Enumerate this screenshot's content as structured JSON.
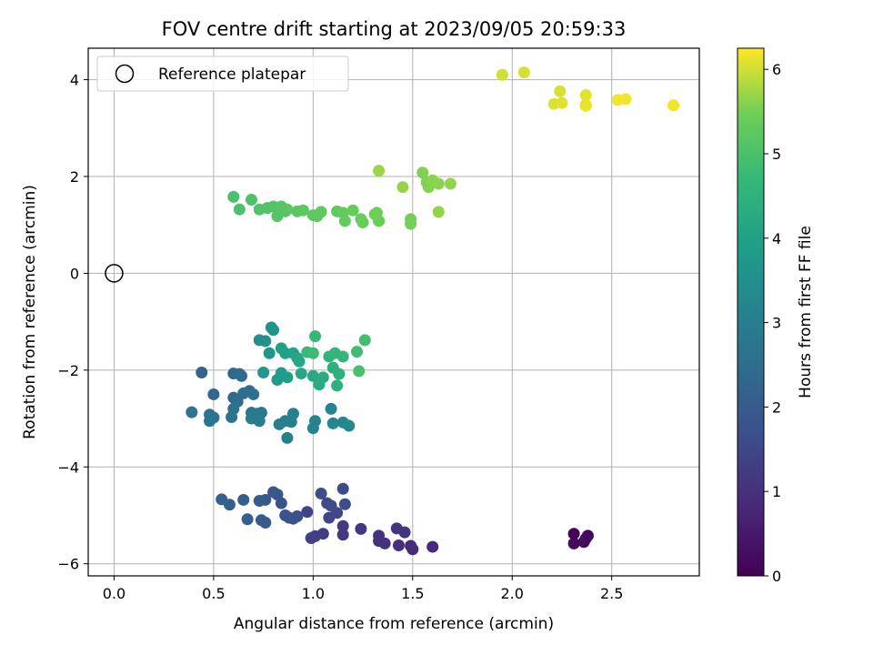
{
  "chart_data": {
    "type": "scatter",
    "title": "FOV centre drift starting at 2023/09/05 20:59:33",
    "xlabel": "Angular distance from reference (arcmin)",
    "ylabel": "Rotation from reference (arcmin)",
    "xlim": [
      -0.13,
      2.94
    ],
    "ylim": [
      -6.25,
      4.65
    ],
    "xticks": [
      0.0,
      0.5,
      1.0,
      1.5,
      2.0,
      2.5
    ],
    "xtick_labels": [
      "0.0",
      "0.5",
      "1.0",
      "1.5",
      "2.0",
      "2.5"
    ],
    "yticks": [
      -6,
      -4,
      -2,
      0,
      2,
      4
    ],
    "ytick_labels": [
      "−6",
      "−4",
      "−2",
      "0",
      "2",
      "4"
    ],
    "grid": true,
    "legend": {
      "position": "top-left",
      "entries": [
        "Reference platepar"
      ]
    },
    "reference_point": {
      "x": 0.0,
      "y": 0.0,
      "label": "Reference platepar"
    },
    "colorbar": {
      "label": "Hours from first FF file",
      "range": [
        0,
        6.25
      ],
      "ticks": [
        0,
        1,
        2,
        3,
        4,
        5,
        6
      ],
      "tick_labels": [
        "0",
        "1",
        "2",
        "3",
        "4",
        "5",
        "6"
      ],
      "colormap": "viridis"
    },
    "series": [
      {
        "points": [
          [
            2.31,
            -5.38,
            0.05
          ],
          [
            2.38,
            -5.42,
            0.1
          ],
          [
            2.31,
            -5.58,
            0.15
          ],
          [
            2.36,
            -5.55,
            0.2
          ],
          [
            2.37,
            -5.48,
            0.25
          ],
          [
            1.5,
            -5.7,
            0.8
          ],
          [
            1.6,
            -5.65,
            0.85
          ],
          [
            1.49,
            -5.63,
            0.9
          ],
          [
            1.43,
            -5.62,
            0.95
          ],
          [
            1.36,
            -5.58,
            1.0
          ],
          [
            1.33,
            -5.53,
            1.02
          ],
          [
            1.33,
            -5.42,
            1.05
          ],
          [
            1.42,
            -5.27,
            1.07
          ],
          [
            1.46,
            -5.35,
            1.1
          ],
          [
            1.24,
            -5.28,
            1.15
          ],
          [
            1.15,
            -5.4,
            1.17
          ],
          [
            1.15,
            -5.22,
            1.2
          ],
          [
            1.05,
            -5.38,
            1.25
          ],
          [
            1.01,
            -5.43,
            1.3
          ],
          [
            0.99,
            -5.47,
            1.35
          ],
          [
            0.97,
            -4.93,
            1.4
          ],
          [
            1.08,
            -5.05,
            1.45
          ],
          [
            1.12,
            -4.95,
            1.5
          ],
          [
            1.07,
            -4.75,
            1.53
          ],
          [
            1.09,
            -4.8,
            1.56
          ],
          [
            1.15,
            -4.45,
            1.6
          ],
          [
            1.16,
            -4.77,
            1.63
          ],
          [
            1.04,
            -4.55,
            1.66
          ],
          [
            0.9,
            -5.07,
            1.7
          ],
          [
            0.92,
            -5.02,
            1.73
          ],
          [
            0.88,
            -5.05,
            1.76
          ],
          [
            0.86,
            -5.0,
            1.8
          ],
          [
            0.84,
            -4.75,
            1.83
          ],
          [
            0.82,
            -4.57,
            1.86
          ],
          [
            0.8,
            -4.52,
            1.9
          ],
          [
            0.76,
            -4.68,
            1.93
          ],
          [
            0.73,
            -4.7,
            1.96
          ],
          [
            0.76,
            -5.15,
            2.0
          ],
          [
            0.74,
            -5.1,
            2.03
          ],
          [
            0.67,
            -5.08,
            2.06
          ],
          [
            0.65,
            -4.68,
            2.1
          ],
          [
            0.58,
            -4.78,
            2.13
          ],
          [
            0.54,
            -4.67,
            2.16
          ],
          [
            0.44,
            -2.05,
            2.25
          ],
          [
            0.5,
            -2.5,
            2.3
          ],
          [
            0.6,
            -2.07,
            2.33
          ],
          [
            0.63,
            -2.08,
            2.36
          ],
          [
            0.64,
            -2.12,
            2.4
          ],
          [
            0.6,
            -2.57,
            2.43
          ],
          [
            0.62,
            -2.65,
            2.46
          ],
          [
            0.65,
            -2.48,
            2.5
          ],
          [
            0.68,
            -2.43,
            2.53
          ],
          [
            0.7,
            -2.5,
            2.56
          ],
          [
            0.6,
            -2.8,
            2.6
          ],
          [
            0.59,
            -2.97,
            2.63
          ],
          [
            0.48,
            -2.92,
            2.66
          ],
          [
            0.5,
            -2.98,
            2.7
          ],
          [
            0.48,
            -3.05,
            2.73
          ],
          [
            0.39,
            -2.87,
            2.76
          ],
          [
            0.69,
            -2.88,
            2.8
          ],
          [
            0.72,
            -2.9,
            2.83
          ],
          [
            0.74,
            -2.88,
            2.86
          ],
          [
            0.69,
            -3.0,
            2.9
          ],
          [
            0.73,
            -3.05,
            2.93
          ],
          [
            0.83,
            -3.12,
            2.96
          ],
          [
            0.86,
            -3.05,
            3.0
          ],
          [
            0.89,
            -3.07,
            3.03
          ],
          [
            0.9,
            -2.9,
            3.06
          ],
          [
            0.87,
            -3.4,
            3.1
          ],
          [
            1.0,
            -3.2,
            3.13
          ],
          [
            1.01,
            -3.05,
            3.16
          ],
          [
            1.09,
            -2.8,
            3.2
          ],
          [
            1.1,
            -3.1,
            3.23
          ],
          [
            1.15,
            -3.08,
            3.26
          ],
          [
            1.18,
            -3.15,
            3.3
          ],
          [
            0.73,
            -1.38,
            3.5
          ],
          [
            0.76,
            -1.4,
            3.55
          ],
          [
            0.79,
            -1.12,
            3.6
          ],
          [
            0.8,
            -1.17,
            3.65
          ],
          [
            0.78,
            -1.65,
            3.7
          ],
          [
            0.75,
            -2.05,
            3.75
          ],
          [
            0.82,
            -2.2,
            3.8
          ],
          [
            0.84,
            -2.06,
            3.85
          ],
          [
            0.87,
            -2.15,
            3.9
          ],
          [
            0.84,
            -1.55,
            3.95
          ],
          [
            0.86,
            -1.65,
            4.0
          ],
          [
            0.9,
            -1.65,
            4.05
          ],
          [
            0.92,
            -1.75,
            4.1
          ],
          [
            0.93,
            -1.82,
            4.15
          ],
          [
            0.94,
            -2.07,
            4.2
          ],
          [
            1.0,
            -2.12,
            4.25
          ],
          [
            1.03,
            -2.3,
            4.3
          ],
          [
            1.05,
            -2.15,
            4.35
          ],
          [
            1.1,
            -1.95,
            4.4
          ],
          [
            1.13,
            -2.08,
            4.45
          ],
          [
            1.12,
            -2.32,
            4.5
          ],
          [
            1.08,
            -1.72,
            4.55
          ],
          [
            1.11,
            -1.65,
            4.6
          ],
          [
            1.15,
            -1.72,
            4.65
          ],
          [
            1.01,
            -1.3,
            4.7
          ],
          [
            0.97,
            -1.63,
            4.75
          ],
          [
            1.0,
            -1.65,
            4.8
          ],
          [
            1.22,
            -1.62,
            4.85
          ],
          [
            1.26,
            -1.38,
            4.9
          ],
          [
            1.23,
            -2.02,
            4.95
          ],
          [
            0.6,
            1.58,
            5.0
          ],
          [
            0.63,
            1.32,
            5.02
          ],
          [
            0.69,
            1.52,
            5.04
          ],
          [
            0.73,
            1.32,
            5.06
          ],
          [
            0.77,
            1.35,
            5.08
          ],
          [
            0.8,
            1.38,
            5.1
          ],
          [
            0.82,
            1.18,
            5.12
          ],
          [
            0.86,
            1.28,
            5.14
          ],
          [
            0.84,
            1.38,
            5.16
          ],
          [
            0.87,
            1.32,
            5.18
          ],
          [
            0.92,
            1.28,
            5.2
          ],
          [
            0.95,
            1.3,
            5.22
          ],
          [
            1.0,
            1.2,
            5.24
          ],
          [
            1.02,
            1.18,
            5.26
          ],
          [
            1.04,
            1.27,
            5.28
          ],
          [
            1.12,
            1.28,
            5.3
          ],
          [
            1.15,
            1.25,
            5.32
          ],
          [
            1.16,
            1.08,
            5.34
          ],
          [
            1.2,
            1.3,
            5.36
          ],
          [
            1.24,
            1.12,
            5.38
          ],
          [
            1.25,
            1.05,
            5.4
          ],
          [
            1.33,
            1.08,
            5.42
          ],
          [
            1.32,
            1.25,
            5.44
          ],
          [
            1.31,
            1.22,
            5.46
          ],
          [
            1.49,
            1.12,
            5.48
          ],
          [
            1.49,
            1.02,
            5.5
          ],
          [
            1.55,
            2.08,
            5.55
          ],
          [
            1.57,
            1.88,
            5.57
          ],
          [
            1.58,
            1.78,
            5.59
          ],
          [
            1.6,
            1.92,
            5.61
          ],
          [
            1.63,
            1.85,
            5.63
          ],
          [
            1.69,
            1.85,
            5.65
          ],
          [
            1.63,
            1.27,
            5.67
          ],
          [
            1.45,
            1.78,
            5.69
          ],
          [
            1.33,
            2.12,
            5.71
          ],
          [
            1.95,
            4.1,
            6.0
          ],
          [
            2.06,
            4.15,
            6.02
          ],
          [
            2.24,
            3.76,
            6.04
          ],
          [
            2.21,
            3.5,
            6.06
          ],
          [
            2.25,
            3.52,
            6.08
          ],
          [
            2.37,
            3.68,
            6.1
          ],
          [
            2.37,
            3.48,
            6.12
          ],
          [
            2.37,
            3.46,
            6.14
          ],
          [
            2.53,
            3.58,
            6.16
          ],
          [
            2.57,
            3.6,
            6.18
          ],
          [
            2.81,
            3.47,
            6.2
          ]
        ]
      }
    ]
  }
}
